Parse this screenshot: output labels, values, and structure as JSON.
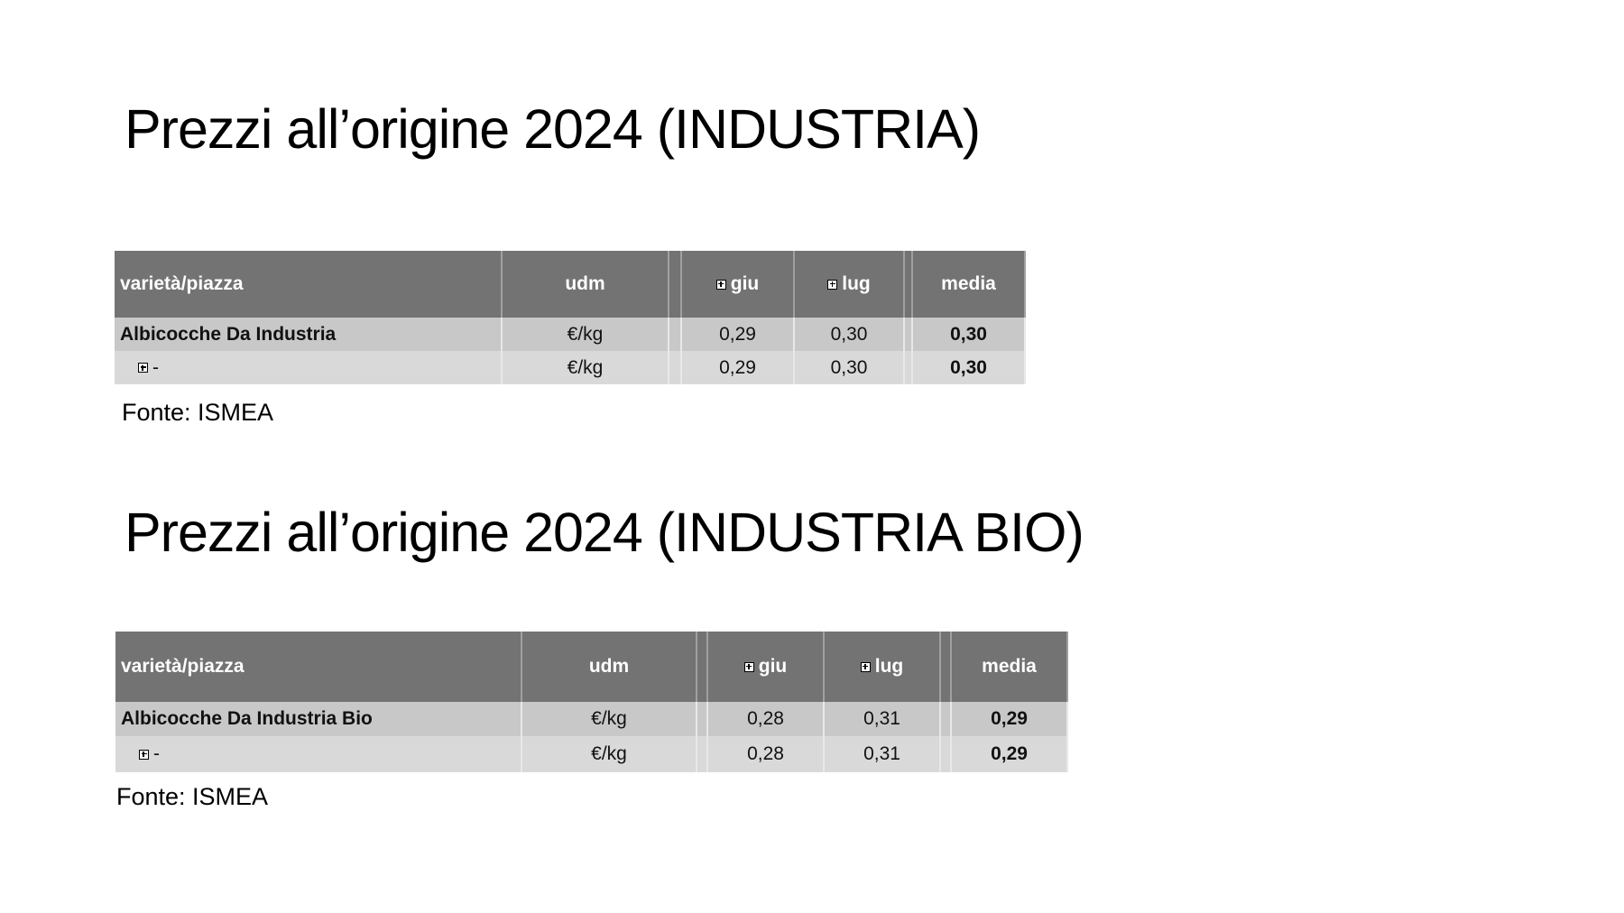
{
  "sections": [
    {
      "title": "Prezzi all’origine 2024 (INDUSTRIA)",
      "table": {
        "headers": [
          "varietà/piazza",
          "udm",
          "giu",
          "lug",
          "media"
        ],
        "rows": [
          [
            "Albicocche Da Industria",
            "€/kg",
            "0,29",
            "0,30",
            "0,30"
          ],
          [
            "-",
            "€/kg",
            "0,29",
            "0,30",
            "0,30"
          ]
        ]
      },
      "source": "Fonte: ISMEA"
    },
    {
      "title": "Prezzi all’origine 2024 (INDUSTRIA BIO)",
      "table": {
        "headers": [
          "varietà/piazza",
          "udm",
          "giu",
          "lug",
          "media"
        ],
        "rows": [
          [
            "Albicocche Da Industria Bio",
            "€/kg",
            "0,28",
            "0,31",
            "0,29"
          ],
          [
            "-",
            "€/kg",
            "0,28",
            "0,31",
            "0,29"
          ]
        ]
      },
      "source": "Fonte: ISMEA"
    }
  ]
}
